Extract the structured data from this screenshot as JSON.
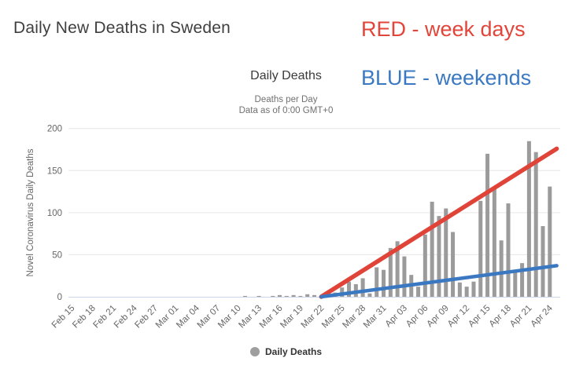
{
  "page": {
    "title": "Daily New Deaths in Sweden"
  },
  "annotations": {
    "red_label": "RED - week days",
    "blue_label": "BLUE - weekends",
    "red_color": "#e2453a",
    "blue_color": "#3a78c2"
  },
  "legend": {
    "label": "Daily Deaths",
    "marker_color": "#9e9e9e"
  },
  "chart_data": {
    "type": "bar",
    "title": "Daily Deaths",
    "subtitle1": "Deaths per Day",
    "subtitle2": "Data as of 0:00 GMT+0",
    "ylabel": "Novel Coronavirus Daily Deaths",
    "ylim": [
      0,
      200
    ],
    "yticks": [
      0,
      50,
      100,
      150,
      200
    ],
    "grid": "horizontal-only",
    "bar_color": "#9b9b9b",
    "gridline_color": "#e6e6e6",
    "axis_line_color": "#ccd6eb",
    "tick_label_color": "#666666",
    "x_tick_step": 3,
    "categories": [
      "Feb 15",
      "Feb 16",
      "Feb 17",
      "Feb 18",
      "Feb 19",
      "Feb 20",
      "Feb 21",
      "Feb 22",
      "Feb 23",
      "Feb 24",
      "Feb 25",
      "Feb 26",
      "Feb 27",
      "Feb 28",
      "Feb 29",
      "Mar 01",
      "Mar 02",
      "Mar 03",
      "Mar 04",
      "Mar 05",
      "Mar 06",
      "Mar 07",
      "Mar 08",
      "Mar 09",
      "Mar 10",
      "Mar 11",
      "Mar 12",
      "Mar 13",
      "Mar 14",
      "Mar 15",
      "Mar 16",
      "Mar 17",
      "Mar 18",
      "Mar 19",
      "Mar 20",
      "Mar 21",
      "Mar 22",
      "Mar 23",
      "Mar 24",
      "Mar 25",
      "Mar 26",
      "Mar 27",
      "Mar 28",
      "Mar 29",
      "Mar 30",
      "Mar 31",
      "Apr 01",
      "Apr 02",
      "Apr 03",
      "Apr 04",
      "Apr 05",
      "Apr 06",
      "Apr 07",
      "Apr 08",
      "Apr 09",
      "Apr 10",
      "Apr 11",
      "Apr 12",
      "Apr 13",
      "Apr 14",
      "Apr 15",
      "Apr 16",
      "Apr 17",
      "Apr 18",
      "Apr 19",
      "Apr 20",
      "Apr 21",
      "Apr 22",
      "Apr 23",
      "Apr 24",
      "Apr 25"
    ],
    "values": [
      0,
      0,
      0,
      0,
      0,
      0,
      0,
      0,
      0,
      0,
      0,
      0,
      0,
      0,
      0,
      0,
      0,
      0,
      0,
      0,
      0,
      0,
      0,
      0,
      0,
      1,
      0,
      1,
      0,
      1,
      2,
      1,
      2,
      1,
      3,
      2,
      1,
      2,
      5,
      11,
      18,
      15,
      22,
      4,
      35,
      32,
      58,
      66,
      48,
      26,
      12,
      74,
      113,
      96,
      105,
      77,
      17,
      12,
      18,
      114,
      170,
      130,
      67,
      111,
      29,
      40,
      185,
      172,
      84,
      131,
      0
    ],
    "series_name": "Daily Deaths",
    "trend_lines": [
      {
        "name": "weekday-trend",
        "color": "#e04338",
        "width": 5.5,
        "from": {
          "date": "Mar 22",
          "value": 0
        },
        "to": {
          "date": "Apr 25",
          "value": 176
        }
      },
      {
        "name": "weekend-trend",
        "color": "#3a78c2",
        "width": 4.5,
        "from": {
          "date": "Mar 22",
          "value": 0
        },
        "to": {
          "date": "Apr 25",
          "value": 37
        }
      }
    ]
  }
}
